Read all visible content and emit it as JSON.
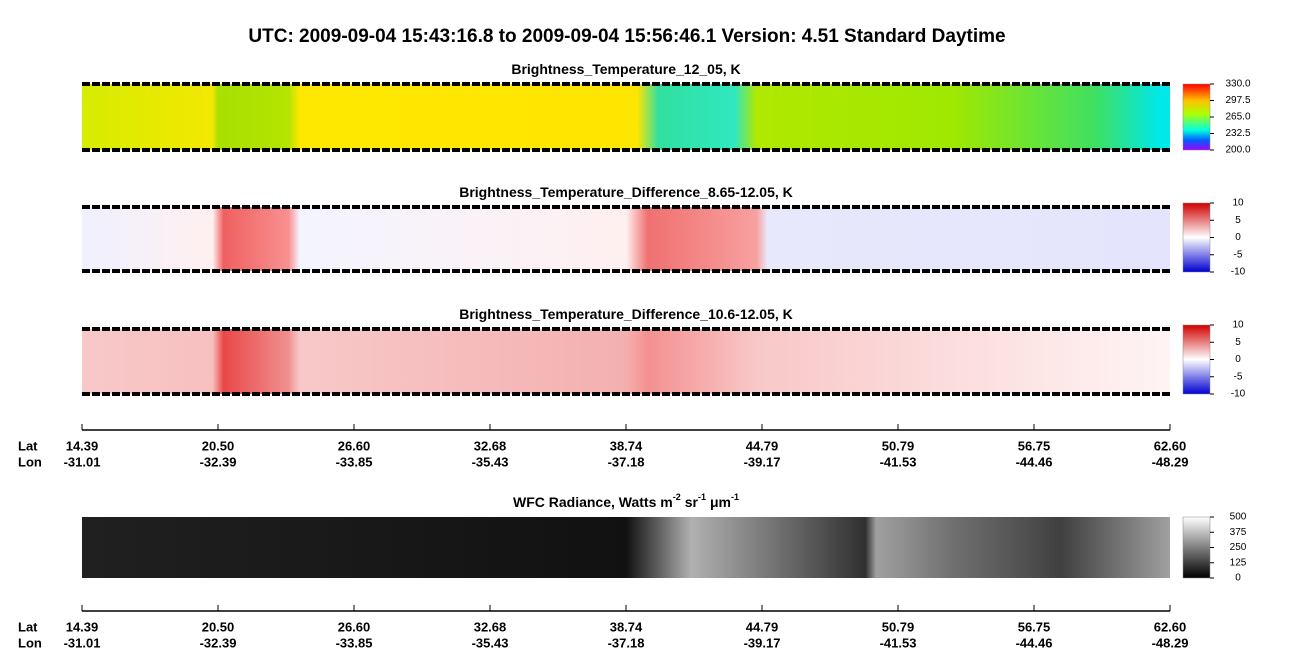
{
  "title": "UTC:  2009-09-04   15:43:16.8  to  2009-09-04   15:56:46.1    Version: 4.51  Standard Daytime",
  "panels": [
    {
      "title": [
        "Brightness_Temperature_12_05, K"
      ],
      "colorbar": [
        "330.0",
        "297.5",
        "265.0",
        "232.5",
        "200.0"
      ]
    },
    {
      "title": [
        "Brightness_Temperature_Difference_8.65-12.05, K"
      ],
      "colorbar": [
        "10",
        "5",
        "0",
        "-5",
        "-10"
      ]
    },
    {
      "title": [
        "Brightness_Temperature_Difference_10.6-12.05, K"
      ],
      "colorbar": [
        "10",
        "5",
        "0",
        "-5",
        "-10"
      ]
    },
    {
      "title": [
        "WFC Radiance, Watts m",
        "-2",
        "sr",
        "-1",
        "μm",
        "-1"
      ],
      "colorbar": [
        "500",
        "375",
        "250",
        "125",
        "0"
      ]
    }
  ],
  "axes": [
    {
      "lat_label": "Lat",
      "lon_label": "Lon",
      "lat": [
        "14.39",
        "20.50",
        "26.60",
        "32.68",
        "38.74",
        "44.79",
        "50.79",
        "56.75",
        "62.60"
      ],
      "lon": [
        "-31.01",
        "-32.39",
        "-33.85",
        "-35.43",
        "-37.18",
        "-39.17",
        "-41.53",
        "-44.46",
        "-48.29"
      ]
    },
    {
      "lat_label": "Lat",
      "lon_label": "Lon",
      "lat": [
        "14.39",
        "20.50",
        "26.60",
        "32.68",
        "38.74",
        "44.79",
        "50.79",
        "56.75",
        "62.60"
      ],
      "lon": [
        "-31.01",
        "-32.39",
        "-33.85",
        "-35.43",
        "-37.18",
        "-39.17",
        "-41.53",
        "-44.46",
        "-48.29"
      ]
    }
  ]
}
